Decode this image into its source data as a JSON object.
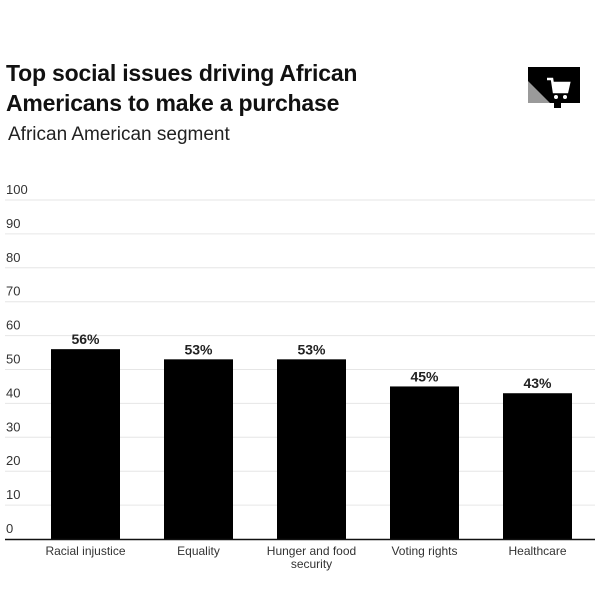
{
  "header": {
    "title_line1": "Top social issues driving African",
    "title_line2": "Americans to make a purchase",
    "subtitle": "African American segment",
    "logo_icon": "shopping-cart-icon"
  },
  "colors": {
    "bar": "#000000",
    "grid": "#e6e6e6",
    "baseline": "#111111",
    "logo_accent": "#9a9a9a"
  },
  "chart_data": {
    "type": "bar",
    "title": "Top social issues driving African Americans to make a purchase",
    "subtitle": "African American segment",
    "categories": [
      [
        "Racial injustice"
      ],
      [
        "Equality"
      ],
      [
        "Hunger and food",
        "security"
      ],
      [
        "Voting rights"
      ],
      [
        "Healthcare"
      ]
    ],
    "category_names": [
      "Racial injustice",
      "Equality",
      "Hunger and food security",
      "Voting rights",
      "Healthcare"
    ],
    "values": [
      56,
      53,
      53,
      45,
      43
    ],
    "value_labels": [
      "56%",
      "53%",
      "53%",
      "45%",
      "43%"
    ],
    "xlabel": "",
    "ylabel": "",
    "ylim": [
      0,
      100
    ],
    "yticks": [
      0,
      10,
      20,
      30,
      40,
      50,
      60,
      70,
      80,
      90,
      100
    ],
    "grid": true,
    "legend": "none"
  }
}
